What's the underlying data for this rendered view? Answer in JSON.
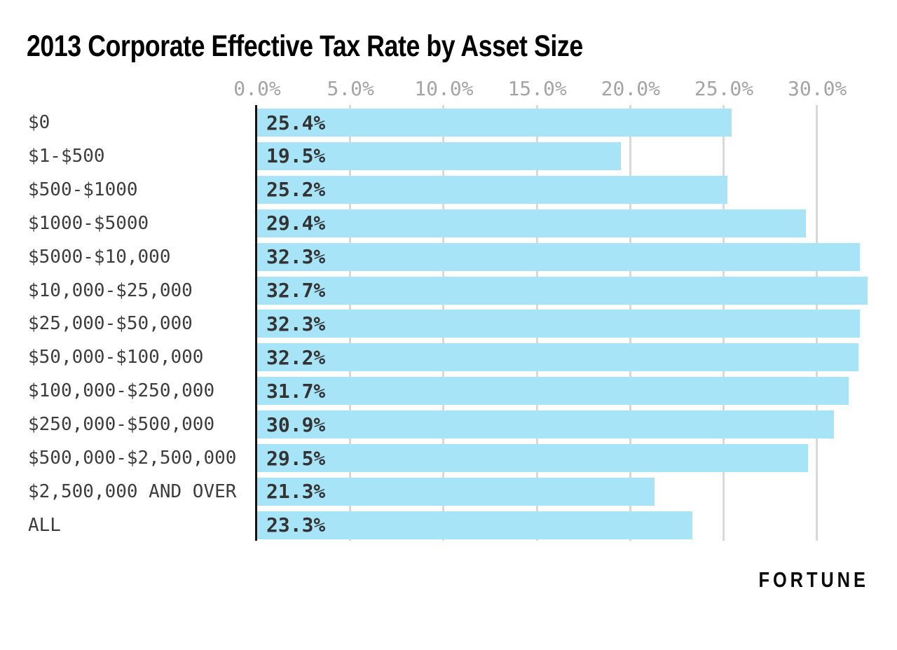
{
  "header": {
    "title": "2013 Corporate Effective Tax Rate by Asset Size"
  },
  "footer": {
    "brand": "FORTUNE"
  },
  "chart_data": {
    "type": "bar",
    "orientation": "horizontal",
    "title": "2013 Corporate Effective Tax Rate by Asset Size",
    "xlabel": "",
    "ylabel": "",
    "xlim": [
      0,
      34.3
    ],
    "grid": "vertical",
    "legend": "none",
    "categories": [
      "$0",
      "$1-$500",
      "$500-$1000",
      "$1000-$5000",
      "$5000-$10,000",
      "$10,000-$25,000",
      "$25,000-$50,000",
      "$50,000-$100,000",
      "$100,000-$250,000",
      "$250,000-$500,000",
      "$500,000-$2,500,000",
      "$2,500,000 AND OVER",
      "ALL"
    ],
    "values": [
      25.4,
      19.5,
      25.2,
      29.4,
      32.3,
      32.7,
      32.3,
      32.2,
      31.7,
      30.9,
      29.5,
      21.3,
      23.3
    ],
    "value_labels": [
      "25.4%",
      "19.5%",
      "25.2%",
      "29.4%",
      "32.3%",
      "32.7%",
      "32.3%",
      "32.2%",
      "31.7%",
      "30.9%",
      "29.5%",
      "21.3%",
      "23.3%"
    ],
    "x_tick_values": [
      0,
      5,
      10,
      15,
      20,
      25,
      30
    ],
    "x_tick_labels": [
      "0.0%",
      "5.0%",
      "10.0%",
      "15.0%",
      "20.0%",
      "25.0%",
      "30.0%"
    ],
    "colors": {
      "bar": "#a7e4f7",
      "axis_line": "#111111",
      "gridline": "#d9d9d9",
      "tick_label": "#a4a4a4",
      "category_label": "#3d3d3d",
      "value_label": "#333333",
      "background": "#ffffff",
      "title": "#000000"
    }
  }
}
